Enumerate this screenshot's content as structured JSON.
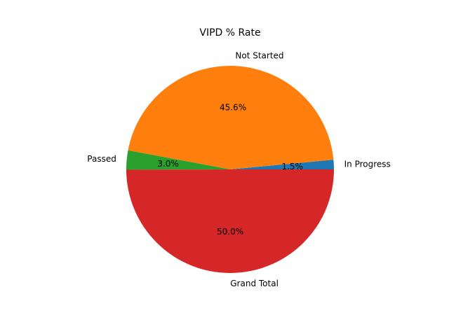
{
  "chart_data": {
    "type": "pie",
    "title": "VIPD % Rate",
    "start_angle_deg": 0,
    "direction": "counterclockwise",
    "slices": [
      {
        "label": "In Progress",
        "value": 1.5,
        "pct_label": "1.5%",
        "color": "#1f77b4"
      },
      {
        "label": "Not Started",
        "value": 45.6,
        "pct_label": "45.6%",
        "color": "#ff7f0e"
      },
      {
        "label": "Passed",
        "value": 3.0,
        "pct_label": "3.0%",
        "color": "#2ca02c"
      },
      {
        "label": "Grand Total",
        "value": 50.0,
        "pct_label": "50.0%",
        "color": "#d62728"
      }
    ]
  }
}
